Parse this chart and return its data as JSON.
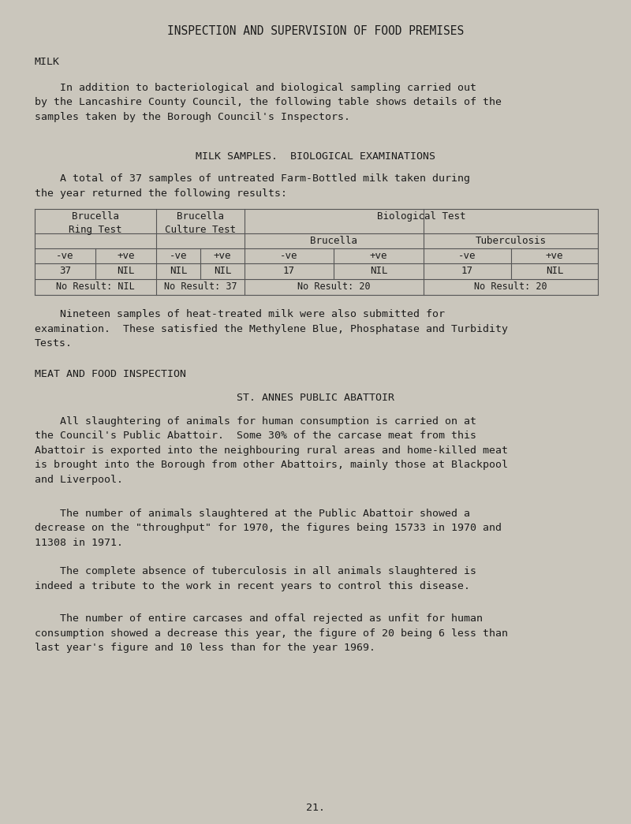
{
  "bg_color": "#cac6bc",
  "page_color": "#e2ddd4",
  "title": "INSPECTION AND SUPERVISION OF FOOD PREMISES",
  "section1_header": "MILK",
  "para1": "    In addition to bacteriological and biological sampling carried out\nby the Lancashire County Council, the following table shows details of the\nsamples taken by the Borough Council's Inspectors.",
  "table_heading": "MILK SAMPLES.  BIOLOGICAL EXAMINATIONS",
  "para2": "    A total of 37 samples of untreated Farm-Bottled milk taken during\nthe year returned the following results:",
  "para3": "    Nineteen samples of heat-treated milk were also submitted for\nexamination.  These satisfied the Methylene Blue, Phosphatase and Turbidity\nTests.",
  "section2_header": "MEAT AND FOOD INSPECTION",
  "section2_subheader": "ST. ANNES PUBLIC ABATTOIR",
  "para4": "    All slaughtering of animals for human consumption is carried on at\nthe Council's Public Abattoir.  Some 30% of the carcase meat from this\nAbattoir is exported into the neighbouring rural areas and home-killed meat\nis brought into the Borough from other Abattoirs, mainly those at Blackpool\nand Liverpool.",
  "para5": "    The number of animals slaughtered at the Public Abattoir showed a\ndecrease on the \"throughput\" for 1970, the figures being 15733 in 1970 and\n11308 in 1971.",
  "para6": "    The complete absence of tuberculosis in all animals slaughtered is\nindeed a tribute to the work in recent years to control this disease.",
  "para7": "    The number of entire carcases and offal rejected as unfit for human\nconsumption showed a decrease this year, the figure of 20 being 6 less than\nlast year's figure and 10 less than for the year 1969.",
  "page_number": "21.",
  "font_size_title": 10.5,
  "font_size_body": 9.5,
  "font_size_table": 9.0,
  "text_color": "#1c1c1c",
  "line_color": "#555555"
}
